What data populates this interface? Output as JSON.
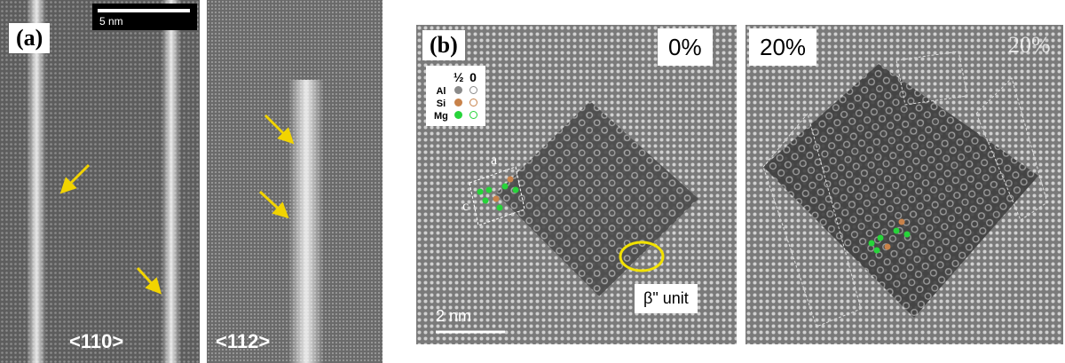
{
  "panel_a": {
    "label": "(a)",
    "scale_bar": "5 nm",
    "view1": "<110>",
    "view2": "<112>"
  },
  "panel_b": {
    "label": "(b)",
    "left_percent": "0%",
    "right_percent": "20%",
    "right_percent_faint": "20%",
    "scale_bar": "2 nm",
    "unit_label": "β\" unit",
    "axis_a": "a",
    "axis_c": "c",
    "legend": {
      "col_half": "½",
      "col_zero": "0",
      "rows": [
        {
          "element": "Al",
          "color": "#8a8a8a"
        },
        {
          "element": "Si",
          "color": "#c8824a"
        },
        {
          "element": "Mg",
          "color": "#27d43a"
        }
      ]
    }
  },
  "colors": {
    "arrow": "#f2d400",
    "circle": "#f2e200"
  }
}
